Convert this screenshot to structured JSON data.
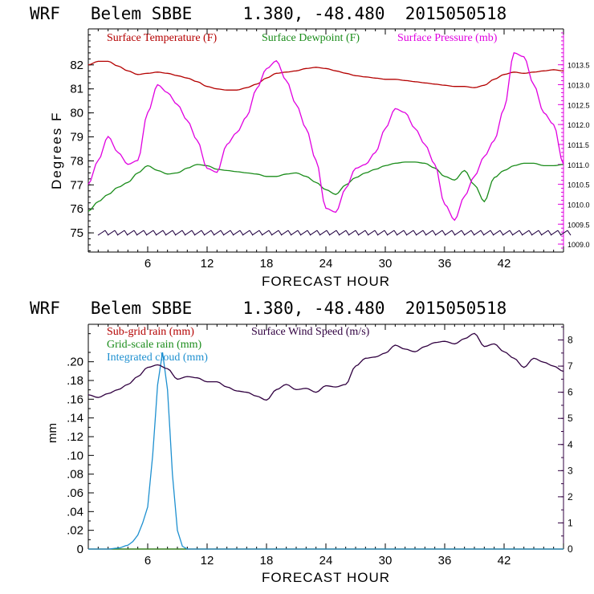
{
  "charts_header": {
    "top_title": "WRF   Belem SBBE     1.380, -48.480  2015050518",
    "bottom_title": "WRF   Belem SBBE     1.380, -48.480  2015050518"
  },
  "chart_data": [
    {
      "type": "line",
      "title": "WRF   Belem SBBE     1.380, -48.480  2015050518",
      "xlabel": "FORECAST HOUR",
      "ylabel": "Degrees F",
      "xlim": [
        0,
        48
      ],
      "ylim": [
        74.2,
        83.5
      ],
      "x_ticks": [
        6,
        12,
        18,
        24,
        30,
        36,
        42
      ],
      "y_ticks": [
        75,
        76,
        77,
        78,
        79,
        80,
        81,
        82
      ],
      "y2lim": [
        1008.8,
        1014.4
      ],
      "y2_ticks": [
        "1009.0",
        "1009.5",
        "1010.0",
        "1010.5",
        "1011.0",
        "1011.5",
        "1012.0",
        "1012.5",
        "1013.0",
        "1013.5"
      ],
      "grid": false,
      "legend_position": "top",
      "series": [
        {
          "name": "Surface Temperature (F)",
          "color": "#b40000",
          "axis": "left",
          "x": [
            0,
            1,
            2,
            3,
            4,
            5,
            6,
            7,
            8,
            9,
            10,
            11,
            12,
            13,
            14,
            15,
            16,
            17,
            18,
            19,
            20,
            21,
            22,
            23,
            24,
            25,
            26,
            27,
            28,
            29,
            30,
            31,
            32,
            33,
            34,
            35,
            36,
            37,
            38,
            39,
            40,
            41,
            42,
            43,
            44,
            45,
            46,
            47,
            48
          ],
          "values": [
            82.0,
            82.15,
            82.15,
            81.95,
            81.75,
            81.6,
            81.65,
            81.7,
            81.65,
            81.55,
            81.45,
            81.3,
            81.1,
            81.0,
            80.95,
            80.95,
            81.05,
            81.2,
            81.45,
            81.65,
            81.7,
            81.75,
            81.85,
            81.9,
            81.85,
            81.75,
            81.65,
            81.55,
            81.5,
            81.45,
            81.4,
            81.4,
            81.35,
            81.3,
            81.25,
            81.2,
            81.15,
            81.1,
            81.1,
            81.05,
            81.15,
            81.4,
            81.6,
            81.7,
            81.65,
            81.7,
            81.75,
            81.8,
            81.75
          ]
        },
        {
          "name": "Surface Dewpoint (F)",
          "color": "#1a8c1a",
          "axis": "left",
          "x": [
            0,
            1,
            2,
            3,
            4,
            5,
            6,
            7,
            8,
            9,
            10,
            11,
            12,
            13,
            14,
            15,
            16,
            17,
            18,
            19,
            20,
            21,
            22,
            23,
            24,
            25,
            26,
            27,
            28,
            29,
            30,
            31,
            32,
            33,
            34,
            35,
            36,
            37,
            38,
            39,
            40,
            41,
            42,
            43,
            44,
            45,
            46,
            47,
            48
          ],
          "values": [
            75.9,
            76.3,
            76.6,
            76.9,
            77.1,
            77.5,
            77.8,
            77.6,
            77.45,
            77.5,
            77.7,
            77.85,
            77.8,
            77.65,
            77.6,
            77.55,
            77.5,
            77.45,
            77.35,
            77.35,
            77.45,
            77.5,
            77.35,
            77.1,
            76.8,
            76.6,
            77.0,
            77.3,
            77.5,
            77.65,
            77.8,
            77.9,
            77.95,
            77.95,
            77.9,
            77.7,
            77.35,
            77.2,
            77.6,
            77.0,
            76.3,
            77.3,
            77.6,
            77.8,
            77.9,
            77.9,
            77.8,
            77.8,
            77.85
          ]
        },
        {
          "name": "Surface Pressure (mb)",
          "color": "#e000e0",
          "axis": "right",
          "x": [
            0,
            1,
            2,
            3,
            4,
            5,
            6,
            7,
            8,
            9,
            10,
            11,
            12,
            13,
            14,
            15,
            16,
            17,
            18,
            19,
            20,
            21,
            22,
            23,
            24,
            25,
            26,
            27,
            28,
            29,
            30,
            31,
            32,
            33,
            34,
            35,
            36,
            37,
            38,
            39,
            40,
            41,
            42,
            43,
            44,
            45,
            46,
            47,
            48
          ],
          "values": [
            1010.5,
            1011.1,
            1011.7,
            1011.3,
            1011.0,
            1011.1,
            1012.3,
            1013.0,
            1012.8,
            1012.5,
            1012.1,
            1011.6,
            1010.9,
            1010.8,
            1011.5,
            1011.8,
            1012.2,
            1012.9,
            1013.4,
            1013.6,
            1013.1,
            1012.5,
            1011.9,
            1011.1,
            1009.9,
            1009.8,
            1010.4,
            1010.9,
            1011.0,
            1011.3,
            1011.9,
            1012.4,
            1012.3,
            1011.9,
            1011.5,
            1011.0,
            1010.0,
            1009.6,
            1010.2,
            1010.7,
            1011.2,
            1011.6,
            1012.4,
            1013.8,
            1013.7,
            1013.0,
            1012.3,
            1012.0,
            1011.0
          ]
        }
      ],
      "wind_barbs": {
        "color": "#200040",
        "count": 49
      }
    },
    {
      "type": "line",
      "title": "WRF   Belem SBBE     1.380, -48.480  2015050518",
      "xlabel": "FORECAST HOUR",
      "ylabel": "mm",
      "xlim": [
        0,
        48
      ],
      "ylim": [
        0,
        0.24
      ],
      "x_ticks": [
        6,
        12,
        18,
        24,
        30,
        36,
        42
      ],
      "y_ticks": [
        "0",
        ".02",
        ".04",
        ".06",
        ".08",
        ".10",
        ".12",
        ".14",
        ".16",
        ".18",
        ".20"
      ],
      "y2lim": [
        0,
        8.6
      ],
      "y2_ticks": [
        "0",
        "1",
        "2",
        "3",
        "4",
        "5",
        "6",
        "7",
        "8"
      ],
      "grid": false,
      "legend_position": "top",
      "series": [
        {
          "name": "Sub-grid rain (mm)",
          "color": "#b40000",
          "axis": "left",
          "x": [
            0,
            48
          ],
          "values": [
            0,
            0
          ]
        },
        {
          "name": "Grid-scale rain (mm)",
          "color": "#1a8c1a",
          "axis": "left",
          "x": [
            0,
            48
          ],
          "values": [
            0,
            0
          ]
        },
        {
          "name": "Integrated cloud (mm)",
          "color": "#1e90d0",
          "axis": "left",
          "x": [
            0,
            2,
            3,
            4,
            4.5,
            5,
            5.5,
            6,
            6.5,
            7,
            7.5,
            8,
            8.5,
            9,
            9.5,
            10,
            48
          ],
          "values": [
            0,
            0,
            0.001,
            0.004,
            0.008,
            0.015,
            0.028,
            0.045,
            0.1,
            0.175,
            0.21,
            0.17,
            0.08,
            0.02,
            0.003,
            0,
            0
          ]
        },
        {
          "name": "Surface Wind Speed (m/s)",
          "color": "#300040",
          "axis": "right",
          "x": [
            0,
            1,
            2,
            3,
            4,
            5,
            6,
            7,
            8,
            9,
            10,
            11,
            12,
            13,
            14,
            15,
            16,
            17,
            18,
            19,
            20,
            21,
            22,
            23,
            24,
            25,
            26,
            27,
            28,
            29,
            30,
            31,
            32,
            33,
            34,
            35,
            36,
            37,
            38,
            39,
            40,
            41,
            42,
            43,
            44,
            45,
            46,
            47,
            48
          ],
          "values": [
            5.9,
            5.8,
            5.95,
            6.1,
            6.3,
            6.6,
            6.95,
            7.05,
            6.9,
            6.5,
            6.6,
            6.55,
            6.4,
            6.4,
            6.2,
            6.05,
            6.0,
            5.85,
            5.7,
            6.1,
            6.3,
            6.1,
            6.15,
            6.0,
            6.25,
            6.2,
            6.3,
            7.0,
            7.3,
            7.35,
            7.5,
            7.8,
            7.65,
            7.55,
            7.75,
            7.9,
            7.95,
            7.85,
            8.05,
            8.25,
            7.75,
            7.85,
            7.55,
            7.3,
            6.95,
            7.3,
            7.15,
            7.0,
            6.8
          ]
        }
      ]
    }
  ]
}
